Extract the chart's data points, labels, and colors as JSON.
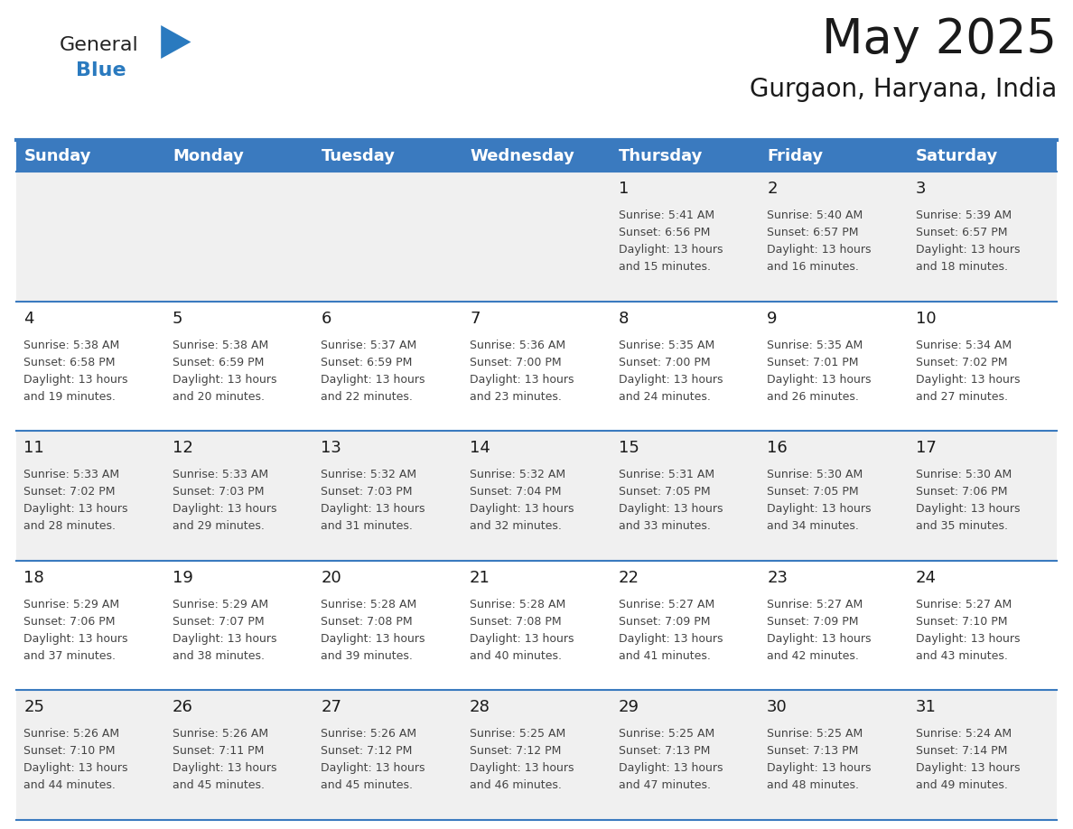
{
  "title": "May 2025",
  "subtitle": "Gurgaon, Haryana, India",
  "header_color": "#3a7abf",
  "header_text_color": "#ffffff",
  "day_names": [
    "Sunday",
    "Monday",
    "Tuesday",
    "Wednesday",
    "Thursday",
    "Friday",
    "Saturday"
  ],
  "bg_color": "#ffffff",
  "alt_row_color": "#f0f0f0",
  "cell_text_color": "#444444",
  "day_num_color": "#1a1a1a",
  "border_color": "#3a7abf",
  "days": [
    {
      "date": 1,
      "col": 4,
      "row": 0,
      "sunrise": "5:41 AM",
      "sunset": "6:56 PM",
      "daylight_h": "13 hours",
      "daylight_m": "and 15 minutes."
    },
    {
      "date": 2,
      "col": 5,
      "row": 0,
      "sunrise": "5:40 AM",
      "sunset": "6:57 PM",
      "daylight_h": "13 hours",
      "daylight_m": "and 16 minutes."
    },
    {
      "date": 3,
      "col": 6,
      "row": 0,
      "sunrise": "5:39 AM",
      "sunset": "6:57 PM",
      "daylight_h": "13 hours",
      "daylight_m": "and 18 minutes."
    },
    {
      "date": 4,
      "col": 0,
      "row": 1,
      "sunrise": "5:38 AM",
      "sunset": "6:58 PM",
      "daylight_h": "13 hours",
      "daylight_m": "and 19 minutes."
    },
    {
      "date": 5,
      "col": 1,
      "row": 1,
      "sunrise": "5:38 AM",
      "sunset": "6:59 PM",
      "daylight_h": "13 hours",
      "daylight_m": "and 20 minutes."
    },
    {
      "date": 6,
      "col": 2,
      "row": 1,
      "sunrise": "5:37 AM",
      "sunset": "6:59 PM",
      "daylight_h": "13 hours",
      "daylight_m": "and 22 minutes."
    },
    {
      "date": 7,
      "col": 3,
      "row": 1,
      "sunrise": "5:36 AM",
      "sunset": "7:00 PM",
      "daylight_h": "13 hours",
      "daylight_m": "and 23 minutes."
    },
    {
      "date": 8,
      "col": 4,
      "row": 1,
      "sunrise": "5:35 AM",
      "sunset": "7:00 PM",
      "daylight_h": "13 hours",
      "daylight_m": "and 24 minutes."
    },
    {
      "date": 9,
      "col": 5,
      "row": 1,
      "sunrise": "5:35 AM",
      "sunset": "7:01 PM",
      "daylight_h": "13 hours",
      "daylight_m": "and 26 minutes."
    },
    {
      "date": 10,
      "col": 6,
      "row": 1,
      "sunrise": "5:34 AM",
      "sunset": "7:02 PM",
      "daylight_h": "13 hours",
      "daylight_m": "and 27 minutes."
    },
    {
      "date": 11,
      "col": 0,
      "row": 2,
      "sunrise": "5:33 AM",
      "sunset": "7:02 PM",
      "daylight_h": "13 hours",
      "daylight_m": "and 28 minutes."
    },
    {
      "date": 12,
      "col": 1,
      "row": 2,
      "sunrise": "5:33 AM",
      "sunset": "7:03 PM",
      "daylight_h": "13 hours",
      "daylight_m": "and 29 minutes."
    },
    {
      "date": 13,
      "col": 2,
      "row": 2,
      "sunrise": "5:32 AM",
      "sunset": "7:03 PM",
      "daylight_h": "13 hours",
      "daylight_m": "and 31 minutes."
    },
    {
      "date": 14,
      "col": 3,
      "row": 2,
      "sunrise": "5:32 AM",
      "sunset": "7:04 PM",
      "daylight_h": "13 hours",
      "daylight_m": "and 32 minutes."
    },
    {
      "date": 15,
      "col": 4,
      "row": 2,
      "sunrise": "5:31 AM",
      "sunset": "7:05 PM",
      "daylight_h": "13 hours",
      "daylight_m": "and 33 minutes."
    },
    {
      "date": 16,
      "col": 5,
      "row": 2,
      "sunrise": "5:30 AM",
      "sunset": "7:05 PM",
      "daylight_h": "13 hours",
      "daylight_m": "and 34 minutes."
    },
    {
      "date": 17,
      "col": 6,
      "row": 2,
      "sunrise": "5:30 AM",
      "sunset": "7:06 PM",
      "daylight_h": "13 hours",
      "daylight_m": "and 35 minutes."
    },
    {
      "date": 18,
      "col": 0,
      "row": 3,
      "sunrise": "5:29 AM",
      "sunset": "7:06 PM",
      "daylight_h": "13 hours",
      "daylight_m": "and 37 minutes."
    },
    {
      "date": 19,
      "col": 1,
      "row": 3,
      "sunrise": "5:29 AM",
      "sunset": "7:07 PM",
      "daylight_h": "13 hours",
      "daylight_m": "and 38 minutes."
    },
    {
      "date": 20,
      "col": 2,
      "row": 3,
      "sunrise": "5:28 AM",
      "sunset": "7:08 PM",
      "daylight_h": "13 hours",
      "daylight_m": "and 39 minutes."
    },
    {
      "date": 21,
      "col": 3,
      "row": 3,
      "sunrise": "5:28 AM",
      "sunset": "7:08 PM",
      "daylight_h": "13 hours",
      "daylight_m": "and 40 minutes."
    },
    {
      "date": 22,
      "col": 4,
      "row": 3,
      "sunrise": "5:27 AM",
      "sunset": "7:09 PM",
      "daylight_h": "13 hours",
      "daylight_m": "and 41 minutes."
    },
    {
      "date": 23,
      "col": 5,
      "row": 3,
      "sunrise": "5:27 AM",
      "sunset": "7:09 PM",
      "daylight_h": "13 hours",
      "daylight_m": "and 42 minutes."
    },
    {
      "date": 24,
      "col": 6,
      "row": 3,
      "sunrise": "5:27 AM",
      "sunset": "7:10 PM",
      "daylight_h": "13 hours",
      "daylight_m": "and 43 minutes."
    },
    {
      "date": 25,
      "col": 0,
      "row": 4,
      "sunrise": "5:26 AM",
      "sunset": "7:10 PM",
      "daylight_h": "13 hours",
      "daylight_m": "and 44 minutes."
    },
    {
      "date": 26,
      "col": 1,
      "row": 4,
      "sunrise": "5:26 AM",
      "sunset": "7:11 PM",
      "daylight_h": "13 hours",
      "daylight_m": "and 45 minutes."
    },
    {
      "date": 27,
      "col": 2,
      "row": 4,
      "sunrise": "5:26 AM",
      "sunset": "7:12 PM",
      "daylight_h": "13 hours",
      "daylight_m": "and 45 minutes."
    },
    {
      "date": 28,
      "col": 3,
      "row": 4,
      "sunrise": "5:25 AM",
      "sunset": "7:12 PM",
      "daylight_h": "13 hours",
      "daylight_m": "and 46 minutes."
    },
    {
      "date": 29,
      "col": 4,
      "row": 4,
      "sunrise": "5:25 AM",
      "sunset": "7:13 PM",
      "daylight_h": "13 hours",
      "daylight_m": "and 47 minutes."
    },
    {
      "date": 30,
      "col": 5,
      "row": 4,
      "sunrise": "5:25 AM",
      "sunset": "7:13 PM",
      "daylight_h": "13 hours",
      "daylight_m": "and 48 minutes."
    },
    {
      "date": 31,
      "col": 6,
      "row": 4,
      "sunrise": "5:24 AM",
      "sunset": "7:14 PM",
      "daylight_h": "13 hours",
      "daylight_m": "and 49 minutes."
    }
  ],
  "num_rows": 5,
  "num_cols": 7,
  "logo_general_color": "#222222",
  "logo_blue_color": "#2a7abf",
  "title_fontsize": 38,
  "subtitle_fontsize": 20,
  "header_fontsize": 13,
  "date_fontsize": 13,
  "cell_fontsize": 9
}
